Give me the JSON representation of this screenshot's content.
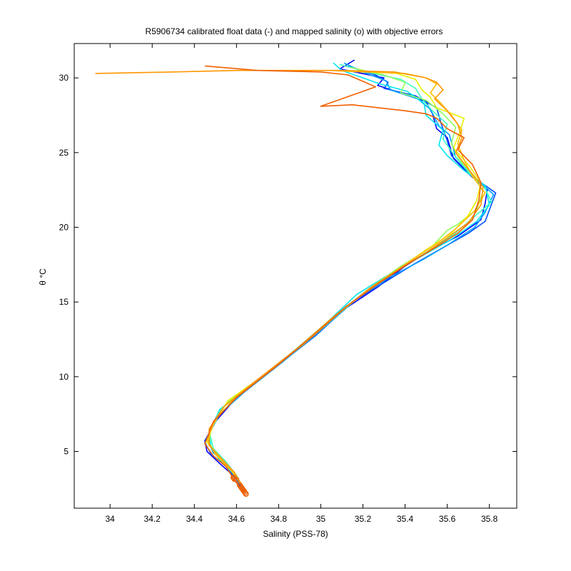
{
  "chart_data": {
    "type": "line",
    "title": "R5906734 calibrated float data (-) and mapped salinity (o) with objective errors",
    "xlabel": "Salinity (PSS-78)",
    "ylabel": "θ °C",
    "xlim": [
      33.83,
      35.93
    ],
    "ylim": [
      1.2,
      32.3
    ],
    "xticks": [
      34,
      34.2,
      34.4,
      34.6,
      34.8,
      35,
      35.2,
      35.4,
      35.6,
      35.8
    ],
    "xtick_labels": [
      "34",
      "34.2",
      "34.4",
      "34.6",
      "34.8",
      "35",
      "35.2",
      "35.4",
      "35.6",
      "35.8"
    ],
    "yticks": [
      5,
      10,
      15,
      20,
      25,
      30
    ],
    "ytick_labels": [
      "5",
      "10",
      "15",
      "20",
      "25",
      "30"
    ],
    "grid": false,
    "legend": "none",
    "series": [
      {
        "color": "#0000ff",
        "points": [
          [
            35.16,
            31.2
          ],
          [
            35.09,
            30.6
          ],
          [
            35.3,
            30.0
          ],
          [
            35.27,
            29.5
          ],
          [
            35.4,
            28.9
          ],
          [
            35.5,
            28.4
          ],
          [
            35.53,
            27.6
          ],
          [
            35.55,
            26.6
          ],
          [
            35.6,
            26.0
          ],
          [
            35.63,
            24.6
          ],
          [
            35.7,
            23.6
          ],
          [
            35.79,
            22.5
          ],
          [
            35.78,
            21.6
          ],
          [
            35.76,
            20.5
          ],
          [
            35.65,
            19.4
          ],
          [
            35.5,
            18.3
          ],
          [
            35.4,
            17.4
          ],
          [
            35.27,
            16.0
          ],
          [
            35.12,
            14.6
          ],
          [
            34.96,
            12.6
          ],
          [
            34.78,
            10.6
          ],
          [
            34.6,
            8.6
          ],
          [
            34.5,
            7.0
          ],
          [
            34.45,
            5.7
          ],
          [
            34.46,
            5.0
          ],
          [
            34.52,
            4.2
          ],
          [
            34.6,
            3.2
          ],
          [
            34.64,
            2.2
          ]
        ]
      },
      {
        "color": "#0050ff",
        "points": [
          [
            35.13,
            30.8
          ],
          [
            35.26,
            30.2
          ],
          [
            35.32,
            29.7
          ],
          [
            35.3,
            29.3
          ],
          [
            35.45,
            28.8
          ],
          [
            35.55,
            28.0
          ],
          [
            35.57,
            27.0
          ],
          [
            35.6,
            25.8
          ],
          [
            35.62,
            24.8
          ],
          [
            35.72,
            23.4
          ],
          [
            35.83,
            22.3
          ],
          [
            35.78,
            20.4
          ],
          [
            35.7,
            19.6
          ],
          [
            35.55,
            18.4
          ],
          [
            35.45,
            17.6
          ],
          [
            35.3,
            16.3
          ],
          [
            35.15,
            15.0
          ],
          [
            34.98,
            12.8
          ],
          [
            34.8,
            10.8
          ],
          [
            34.62,
            8.8
          ],
          [
            34.5,
            7.2
          ],
          [
            34.45,
            5.6
          ],
          [
            34.48,
            4.8
          ],
          [
            34.55,
            4.0
          ],
          [
            34.6,
            3.1
          ],
          [
            34.63,
            2.3
          ]
        ]
      },
      {
        "color": "#00a0ff",
        "points": [
          [
            35.11,
            31.0
          ],
          [
            35.2,
            30.4
          ],
          [
            35.31,
            29.8
          ],
          [
            35.33,
            29.2
          ],
          [
            35.46,
            28.6
          ],
          [
            35.52,
            27.9
          ],
          [
            35.56,
            26.8
          ],
          [
            35.61,
            26.2
          ],
          [
            35.64,
            24.7
          ],
          [
            35.74,
            23.2
          ],
          [
            35.82,
            22.2
          ],
          [
            35.78,
            21.0
          ],
          [
            35.73,
            20.0
          ],
          [
            35.6,
            18.8
          ],
          [
            35.48,
            17.8
          ],
          [
            35.32,
            16.6
          ],
          [
            35.17,
            15.2
          ],
          [
            35.0,
            13.1
          ],
          [
            34.82,
            11.0
          ],
          [
            34.64,
            9.0
          ],
          [
            34.52,
            7.5
          ],
          [
            34.46,
            5.9
          ],
          [
            34.49,
            4.9
          ],
          [
            34.56,
            4.1
          ],
          [
            34.6,
            3.3
          ],
          [
            34.64,
            2.4
          ]
        ]
      },
      {
        "color": "#00e5f0",
        "points": [
          [
            35.06,
            31.0
          ],
          [
            35.1,
            30.5
          ],
          [
            35.2,
            30.0
          ],
          [
            35.28,
            29.6
          ],
          [
            35.41,
            29.1
          ],
          [
            35.49,
            28.3
          ],
          [
            35.5,
            27.5
          ],
          [
            35.58,
            26.5
          ],
          [
            35.56,
            25.5
          ],
          [
            35.6,
            24.8
          ],
          [
            35.68,
            23.8
          ],
          [
            35.78,
            22.8
          ],
          [
            35.8,
            21.5
          ],
          [
            35.74,
            20.4
          ],
          [
            35.62,
            19.2
          ],
          [
            35.47,
            18.0
          ],
          [
            35.33,
            16.9
          ],
          [
            35.17,
            15.5
          ],
          [
            35.02,
            13.5
          ],
          [
            34.84,
            11.3
          ],
          [
            34.65,
            9.2
          ],
          [
            34.52,
            7.8
          ],
          [
            34.47,
            6.2
          ],
          [
            34.48,
            5.3
          ],
          [
            34.52,
            4.4
          ],
          [
            34.58,
            3.6
          ],
          [
            34.62,
            2.8
          ]
        ]
      },
      {
        "color": "#40ffc0",
        "points": [
          [
            35.09,
            30.9
          ],
          [
            35.25,
            30.3
          ],
          [
            35.38,
            29.9
          ],
          [
            35.45,
            29.3
          ],
          [
            35.48,
            28.6
          ],
          [
            35.53,
            27.8
          ],
          [
            35.6,
            26.9
          ],
          [
            35.58,
            25.9
          ],
          [
            35.63,
            24.9
          ],
          [
            35.7,
            23.7
          ],
          [
            35.78,
            22.6
          ],
          [
            35.81,
            21.7
          ],
          [
            35.72,
            20.6
          ],
          [
            35.63,
            19.5
          ],
          [
            35.5,
            18.3
          ],
          [
            35.37,
            17.2
          ],
          [
            35.22,
            15.8
          ],
          [
            35.05,
            13.9
          ],
          [
            34.87,
            11.7
          ],
          [
            34.68,
            9.5
          ],
          [
            34.53,
            7.9
          ],
          [
            34.47,
            6.4
          ],
          [
            34.49,
            5.2
          ],
          [
            34.55,
            4.3
          ],
          [
            34.6,
            3.4
          ],
          [
            34.63,
            2.5
          ]
        ]
      },
      {
        "color": "#90ff60",
        "points": [
          [
            35.14,
            30.7
          ],
          [
            35.3,
            30.2
          ],
          [
            35.4,
            29.7
          ],
          [
            35.38,
            29.0
          ],
          [
            35.5,
            28.5
          ],
          [
            35.58,
            27.6
          ],
          [
            35.64,
            26.7
          ],
          [
            35.62,
            25.6
          ],
          [
            35.66,
            24.5
          ],
          [
            35.72,
            23.5
          ],
          [
            35.77,
            22.4
          ],
          [
            35.74,
            21.2
          ],
          [
            35.65,
            20.2
          ],
          [
            35.6,
            19.8
          ],
          [
            35.52,
            18.6
          ],
          [
            35.38,
            17.4
          ],
          [
            35.24,
            16.0
          ],
          [
            35.07,
            14.1
          ],
          [
            34.9,
            12.0
          ],
          [
            34.7,
            9.8
          ],
          [
            34.55,
            8.2
          ],
          [
            34.48,
            6.6
          ],
          [
            34.47,
            5.5
          ],
          [
            34.53,
            4.5
          ],
          [
            34.59,
            3.5
          ],
          [
            34.63,
            2.6
          ]
        ]
      },
      {
        "color": "#e8f000",
        "points": [
          [
            35.18,
            30.5
          ],
          [
            35.36,
            30.3
          ],
          [
            35.45,
            29.9
          ],
          [
            35.48,
            29.2
          ],
          [
            35.52,
            28.7
          ],
          [
            35.55,
            28.0
          ],
          [
            35.68,
            27.3
          ],
          [
            35.66,
            26.4
          ],
          [
            35.63,
            25.3
          ],
          [
            35.7,
            24.2
          ],
          [
            35.76,
            23.0
          ],
          [
            35.74,
            21.8
          ],
          [
            35.7,
            20.8
          ],
          [
            35.62,
            19.6
          ],
          [
            35.5,
            18.5
          ],
          [
            35.4,
            17.5
          ],
          [
            35.26,
            16.2
          ],
          [
            35.09,
            14.3
          ],
          [
            34.92,
            12.2
          ],
          [
            34.72,
            10.0
          ],
          [
            34.56,
            8.4
          ],
          [
            34.49,
            6.8
          ],
          [
            34.46,
            5.6
          ],
          [
            34.52,
            4.6
          ],
          [
            34.58,
            3.7
          ],
          [
            34.63,
            2.7
          ]
        ]
      },
      {
        "color": "#ffbe00",
        "points": [
          [
            35.04,
            30.5
          ],
          [
            35.2,
            30.4
          ],
          [
            35.4,
            30.3
          ],
          [
            35.5,
            30.0
          ],
          [
            35.55,
            29.6
          ],
          [
            35.52,
            29.0
          ],
          [
            35.57,
            28.3
          ],
          [
            35.62,
            27.5
          ],
          [
            35.67,
            26.5
          ],
          [
            35.65,
            25.6
          ],
          [
            35.68,
            24.5
          ],
          [
            35.72,
            23.4
          ],
          [
            35.78,
            22.3
          ],
          [
            35.73,
            21.1
          ],
          [
            35.64,
            19.9
          ],
          [
            35.55,
            18.9
          ],
          [
            35.43,
            17.8
          ],
          [
            35.3,
            16.5
          ],
          [
            35.14,
            14.9
          ],
          [
            34.97,
            12.8
          ],
          [
            34.78,
            10.6
          ],
          [
            34.6,
            8.7
          ],
          [
            34.5,
            7.1
          ],
          [
            34.46,
            5.8
          ],
          [
            34.5,
            4.8
          ],
          [
            34.57,
            3.8
          ],
          [
            34.62,
            2.9
          ]
        ]
      },
      {
        "color": "#ff9600",
        "points": [
          [
            33.93,
            30.3
          ],
          [
            34.3,
            30.4
          ],
          [
            34.6,
            30.5
          ],
          [
            34.9,
            30.5
          ],
          [
            35.1,
            30.5
          ],
          [
            35.35,
            30.4
          ],
          [
            35.5,
            30.0
          ],
          [
            35.55,
            29.7
          ],
          [
            35.58,
            29.2
          ],
          [
            35.54,
            28.6
          ],
          [
            35.6,
            27.8
          ],
          [
            35.65,
            26.9
          ],
          [
            35.67,
            26.0
          ],
          [
            35.64,
            25.0
          ],
          [
            35.7,
            23.9
          ],
          [
            35.77,
            22.7
          ],
          [
            35.76,
            21.5
          ],
          [
            35.7,
            20.3
          ],
          [
            35.6,
            19.3
          ],
          [
            35.5,
            18.3
          ],
          [
            35.38,
            17.3
          ],
          [
            35.23,
            15.9
          ],
          [
            35.06,
            14.0
          ],
          [
            34.88,
            11.8
          ],
          [
            34.68,
            9.6
          ],
          [
            34.54,
            8.0
          ],
          [
            34.47,
            6.5
          ],
          [
            34.47,
            5.4
          ],
          [
            34.53,
            4.5
          ],
          [
            34.59,
            3.6
          ],
          [
            34.63,
            2.6
          ]
        ]
      },
      {
        "color": "#f06000",
        "points": [
          [
            34.45,
            30.8
          ],
          [
            34.7,
            30.5
          ],
          [
            35.0,
            30.4
          ],
          [
            35.13,
            30.2
          ],
          [
            35.26,
            29.4
          ],
          [
            35.0,
            28.1
          ],
          [
            35.15,
            28.2
          ],
          [
            35.4,
            27.8
          ],
          [
            35.5,
            27.6
          ],
          [
            35.55,
            27.3
          ],
          [
            35.6,
            26.6
          ],
          [
            35.68,
            26.0
          ],
          [
            35.65,
            25.2
          ],
          [
            35.72,
            24.2
          ],
          [
            35.76,
            23.0
          ],
          [
            35.75,
            21.8
          ],
          [
            35.72,
            20.5
          ],
          [
            35.65,
            19.6
          ],
          [
            35.55,
            18.7
          ],
          [
            35.42,
            17.6
          ],
          [
            35.28,
            16.3
          ],
          [
            35.12,
            14.7
          ],
          [
            34.96,
            12.7
          ],
          [
            34.78,
            10.6
          ],
          [
            34.6,
            8.6
          ],
          [
            34.49,
            7.0
          ],
          [
            34.45,
            5.5
          ],
          [
            34.49,
            4.7
          ],
          [
            34.55,
            4.0
          ],
          [
            34.58,
            3.3
          ],
          [
            34.61,
            2.7
          ],
          [
            34.64,
            2.2
          ]
        ]
      }
    ],
    "mapped_points": {
      "color": "#f06000",
      "points": [
        [
          34.585,
          3.25
        ],
        [
          34.59,
          3.15
        ],
        [
          34.6,
          3.1
        ],
        [
          34.615,
          2.75
        ],
        [
          34.62,
          2.65
        ],
        [
          34.625,
          2.55
        ],
        [
          34.63,
          2.45
        ],
        [
          34.635,
          2.35
        ],
        [
          34.64,
          2.25
        ],
        [
          34.645,
          2.15
        ]
      ]
    }
  }
}
